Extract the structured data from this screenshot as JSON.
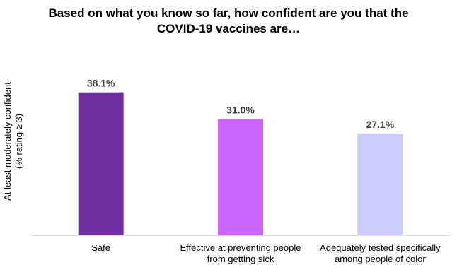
{
  "chart_data": {
    "type": "bar",
    "title": [
      "Based on what you know so far, how confident are you that the",
      "COVID-19 vaccines are…"
    ],
    "ylabel": [
      "At least moderately confident",
      "(% rating ≥ 3)"
    ],
    "xlabel": "",
    "categories": [
      [
        "Safe"
      ],
      [
        "Effective at preventing people",
        "from getting sick"
      ],
      [
        "Adequately tested specifically",
        "among people of color"
      ]
    ],
    "values": [
      38.1,
      31.0,
      27.1
    ],
    "data_labels": [
      "38.1%",
      "31.0%",
      "27.1%"
    ],
    "colors": [
      "#7030A0",
      "#CC66FF",
      "#CCCCFF"
    ],
    "ylim": [
      0,
      40
    ],
    "grid": false,
    "legend": "none"
  }
}
